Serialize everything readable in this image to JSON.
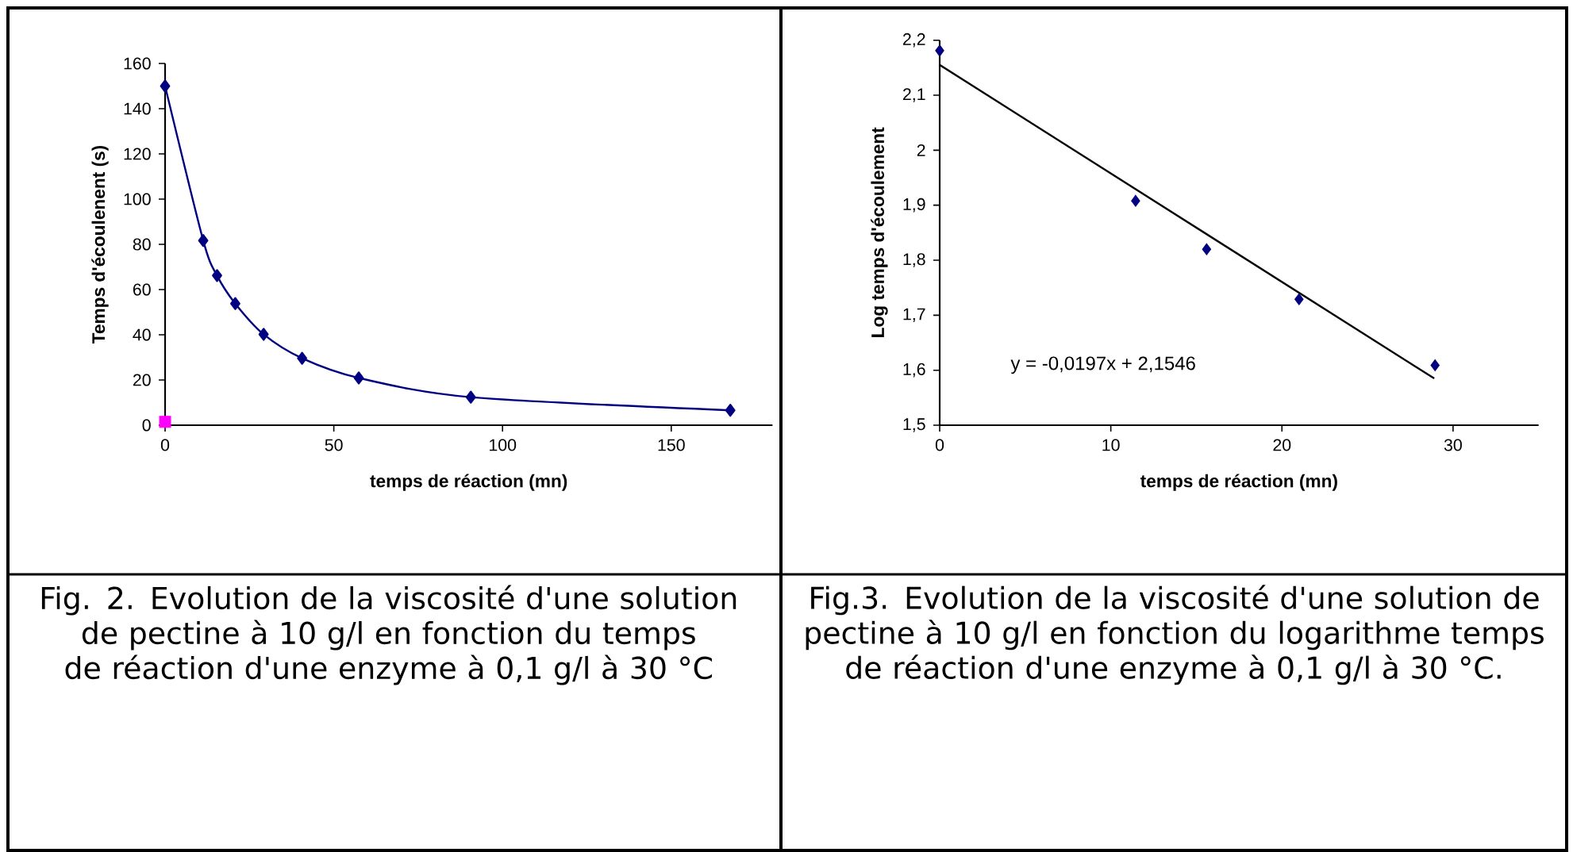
{
  "chart_data": [
    {
      "type": "line",
      "title": "Fig. 2. Evolution de la viscosité d'une solution de pectine à 10 g/l en fonction du temps de réaction d'une enzyme à 0,1 g/l à 30 °C",
      "xlabel": "temps de réaction (mn)",
      "ylabel": "Temps d'écoulenent (s)",
      "xlim": [
        0,
        180
      ],
      "xticks": [
        0,
        50,
        100,
        150
      ],
      "ylim": [
        0,
        160
      ],
      "yticks": [
        0,
        20,
        40,
        60,
        80,
        100,
        120,
        140,
        160
      ],
      "series": [
        {
          "color": "#000080",
          "marker": "diamond",
          "x": [
            0,
            11.3,
            15.4,
            20.8,
            29.2,
            40.6,
            57.4,
            90.6,
            167.5
          ],
          "values": [
            150,
            81.7,
            66.2,
            53.8,
            40.2,
            29.6,
            20.9,
            12.4,
            6.6
          ]
        },
        {
          "type": "scatter",
          "color": "#ff00ff",
          "marker": "square",
          "x": [
            0
          ],
          "values": [
            1.5
          ]
        }
      ]
    },
    {
      "type": "scatter",
      "title": "Fig.3.  Evolution de la viscosité d'une solution de pectine à 10 g/l en fonction du logarithme temps de réaction d'une enzyme à 0,1 g/l à 30 °C.",
      "xlabel": "temps de réaction (mn)",
      "ylabel": "Log temps d'écoulement",
      "xlim": [
        0,
        35
      ],
      "xticks": [
        0,
        10,
        20,
        30
      ],
      "ylim": [
        1.5,
        2.2
      ],
      "yticks": [
        {
          "value": 1.5,
          "label": "1,5"
        },
        {
          "value": 1.6,
          "label": "1,6"
        },
        {
          "value": 1.7,
          "label": "1,7"
        },
        {
          "value": 1.8,
          "label": "1,8"
        },
        {
          "value": 1.9,
          "label": "1,9"
        },
        2,
        {
          "value": 2.1,
          "label": "2,1"
        },
        {
          "value": 2.2,
          "label": "2,2"
        }
      ],
      "annotations": [
        "y = -0,0197x + 2,1546"
      ],
      "series": [
        {
          "color": "#000080",
          "marker": "diamond",
          "x": [
            0,
            11.45,
            15.6,
            21.0,
            28.95
          ],
          "values": [
            2.181,
            1.908,
            1.82,
            1.729,
            1.609
          ]
        },
        {
          "type": "line",
          "color": "#000000",
          "marker": "none",
          "x": [
            0,
            28.9
          ],
          "values": [
            2.155,
            1.585
          ]
        }
      ]
    }
  ]
}
